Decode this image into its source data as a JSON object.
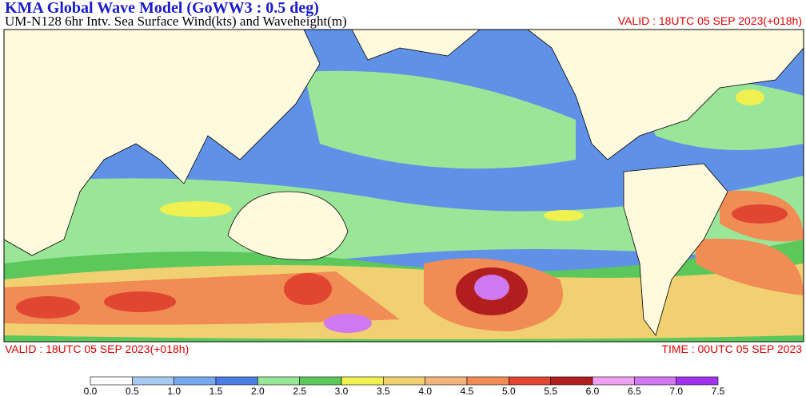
{
  "header": {
    "title": "KMA  Global Wave Model (GoWW3 : 0.5 deg)",
    "subtitle": "UM-N128  6hr Intv. Sea Surface Wind(kts) and Waveheight(m)",
    "valid_top": "VALID : 18UTC 05 SEP 2023(+018h)"
  },
  "footer": {
    "valid": "VALID : 18UTC 05 SEP 2023(+018h)",
    "time": "TIME : 00UTC 05 SEP 2023"
  },
  "legend": {
    "colors": [
      "#ffffff",
      "#a8caf0",
      "#78a8ee",
      "#4c7ce4",
      "#9ae698",
      "#5cc85c",
      "#f0f050",
      "#f0d070",
      "#f0b47c",
      "#f08c54",
      "#e04632",
      "#b01e1e",
      "#f0a0f0",
      "#d078f0",
      "#a032f0"
    ],
    "ticks": [
      {
        "value": 0,
        "label": "0.0"
      },
      {
        "value": 0.5,
        "label": "0.5"
      },
      {
        "value": 1,
        "label": "1.0"
      },
      {
        "value": 1.5,
        "label": "1.5"
      },
      {
        "value": 2,
        "label": "2.0"
      },
      {
        "value": 2.5,
        "label": "2.5"
      },
      {
        "value": 3,
        "label": "3.0"
      },
      {
        "value": 3.5,
        "label": "3.5"
      },
      {
        "value": 4,
        "label": "4.0"
      },
      {
        "value": 4.5,
        "label": "4.5"
      },
      {
        "value": 5,
        "label": "5.0"
      },
      {
        "value": 5.5,
        "label": "5.5"
      },
      {
        "value": 6,
        "label": "6.0"
      },
      {
        "value": 6.5,
        "label": "6.5"
      },
      {
        "value": 7,
        "label": "7.0"
      },
      {
        "value": 7.5,
        "label": "7.5"
      }
    ]
  }
}
